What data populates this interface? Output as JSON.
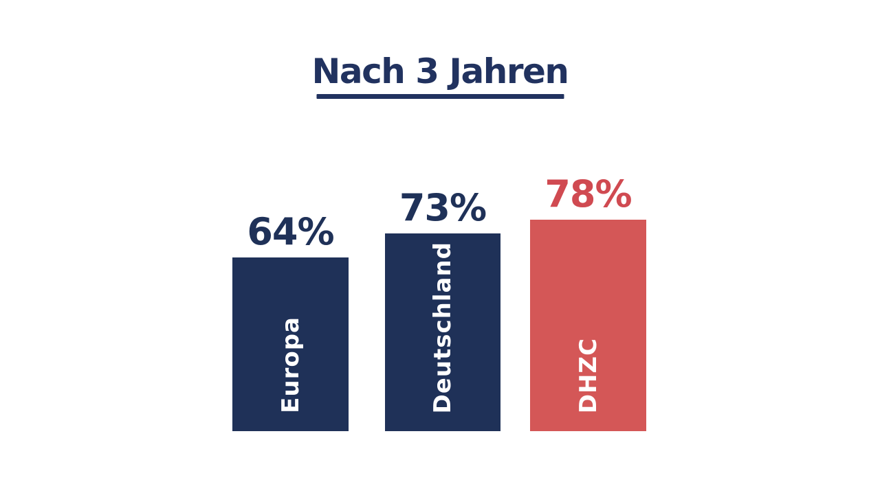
{
  "title": {
    "text": "Nach 3 Jahren"
  },
  "colors": {
    "navy": "#1f3158",
    "red": "#d45757",
    "red_text": "#d04a51",
    "background": "#ffffff",
    "bar_label_text": "#ffffff"
  },
  "chart_data": {
    "type": "bar",
    "title": "Nach 3 Jahren",
    "categories": [
      "Europa",
      "Deutschland",
      "DHZC"
    ],
    "values": [
      64,
      73,
      78
    ],
    "value_labels": [
      "64%",
      "73%",
      "78%"
    ],
    "unit": "%",
    "xlabel": "",
    "ylabel": "",
    "grid": false,
    "legend": null,
    "orientation": "vertical",
    "category_label_position": "inside-bottom-rotated",
    "value_label_position": "above-bar",
    "bar_color_keys": [
      "navy",
      "navy",
      "red"
    ],
    "value_label_color_keys": [
      "navy",
      "navy",
      "red_text"
    ]
  },
  "bars": [
    {
      "category": "Europa",
      "value": 64,
      "value_label": "64%",
      "color_key": "navy",
      "label_color_key": "navy"
    },
    {
      "category": "Deutschland",
      "value": 73,
      "value_label": "73%",
      "color_key": "navy",
      "label_color_key": "navy"
    },
    {
      "category": "DHZC",
      "value": 78,
      "value_label": "78%",
      "color_key": "red",
      "label_color_key": "red_text"
    }
  ]
}
